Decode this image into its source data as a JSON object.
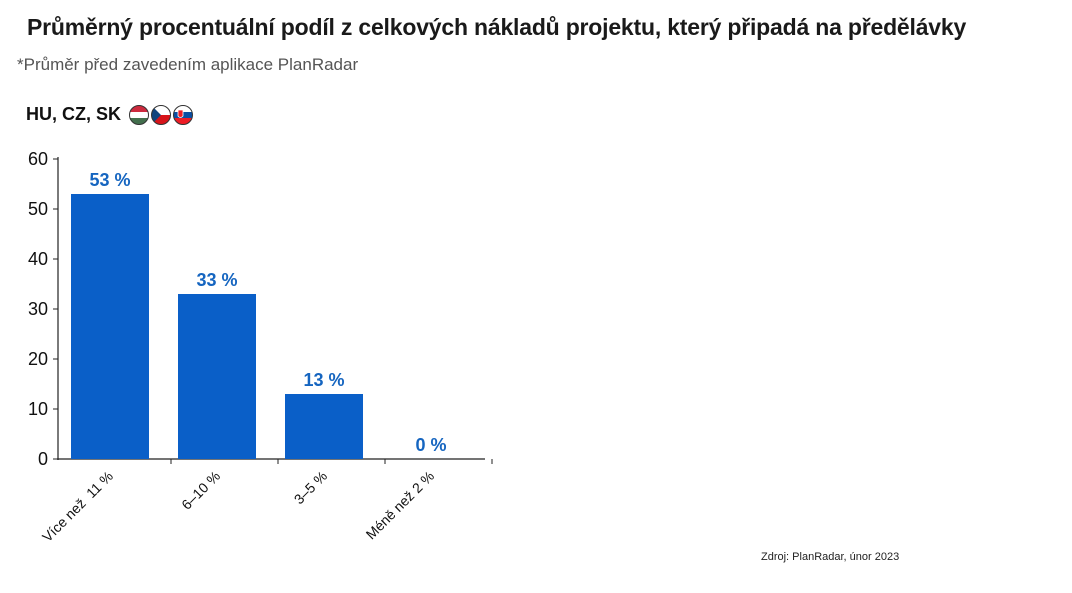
{
  "header": {
    "title": "Průměrný procentuální podíl z celkových nákladů projektu, který připadá na předělávky",
    "subtitle": "*Průměr před zavedením aplikace PlanRadar",
    "region_label": "HU, CZ, SK",
    "flags": [
      "hungary-flag-icon",
      "czech-flag-icon",
      "slovakia-flag-icon"
    ]
  },
  "footer": {
    "source": "Zdroj: PlanRadar, únor 2023"
  },
  "colors": {
    "bar": "#0a5fc8",
    "value_label": "#1565c0",
    "axis": "#222222"
  },
  "chart_data": {
    "type": "bar",
    "categories": [
      "Více než  11 %",
      "6–10 %",
      "3–5 %",
      "Méně než 2 %"
    ],
    "values": [
      53,
      33,
      13,
      0
    ],
    "value_labels": [
      "53 %",
      "33 %",
      "13 %",
      "0 %"
    ],
    "ylim": [
      0,
      60
    ],
    "yticks": [
      0,
      10,
      20,
      30,
      40,
      50,
      60
    ],
    "xlabel": "",
    "ylabel": "",
    "grid": false
  }
}
